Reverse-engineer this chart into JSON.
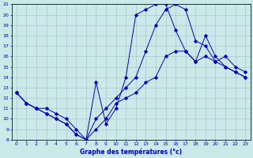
{
  "xlabel": "Graphe des températures (°c)",
  "bg_color": "#cce9e9",
  "grid_color": "#aabbcc",
  "line_color": "#0000bb",
  "xlim": [
    -0.5,
    23.5
  ],
  "ylim": [
    8,
    21
  ],
  "yticks": [
    8,
    9,
    10,
    11,
    12,
    13,
    14,
    15,
    16,
    17,
    18,
    19,
    20,
    21
  ],
  "xticks": [
    0,
    1,
    2,
    3,
    4,
    5,
    6,
    7,
    8,
    9,
    10,
    11,
    12,
    13,
    14,
    15,
    16,
    17,
    18,
    19,
    20,
    21,
    22,
    23
  ],
  "line1_x": [
    0,
    1,
    2,
    3,
    4,
    5,
    6,
    7,
    8,
    9,
    10,
    11,
    12,
    13,
    14,
    15,
    16,
    17,
    18,
    19,
    20,
    21,
    22,
    23
  ],
  "line1_y": [
    12.5,
    11.5,
    11.0,
    11.0,
    10.5,
    10.0,
    9.0,
    8.0,
    10.0,
    11.0,
    12.0,
    13.0,
    14.0,
    16.5,
    19.0,
    20.5,
    21.0,
    20.5,
    17.5,
    17.0,
    15.5,
    16.0,
    15.0,
    14.5
  ],
  "line2_x": [
    0,
    1,
    2,
    3,
    4,
    5,
    6,
    7,
    8,
    9,
    10,
    11,
    12,
    13,
    14,
    15,
    16,
    17,
    18,
    19,
    20,
    21,
    22,
    23
  ],
  "line2_y": [
    12.5,
    11.5,
    11.0,
    10.5,
    10.0,
    9.5,
    8.5,
    8.0,
    9.0,
    10.0,
    11.5,
    12.0,
    12.5,
    13.5,
    14.0,
    16.0,
    16.5,
    16.5,
    15.5,
    16.0,
    15.5,
    15.0,
    14.5,
    14.0
  ],
  "line3_x": [
    0,
    1,
    2,
    3,
    4,
    5,
    6,
    7,
    8,
    9,
    10,
    11,
    12,
    13,
    14,
    15,
    16,
    17,
    18,
    19,
    20,
    21,
    22,
    23
  ],
  "line3_y": [
    12.5,
    11.5,
    11.0,
    10.5,
    10.0,
    9.5,
    8.5,
    8.0,
    13.5,
    9.5,
    11.0,
    14.0,
    20.0,
    20.5,
    21.0,
    21.0,
    18.5,
    16.5,
    15.5,
    18.0,
    16.0,
    15.0,
    14.5,
    14.0
  ]
}
